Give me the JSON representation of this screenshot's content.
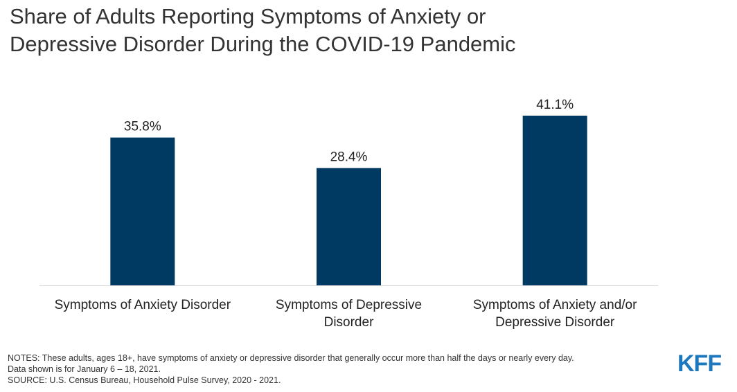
{
  "title": {
    "line1": "Share of Adults Reporting Symptoms of Anxiety or",
    "line2": "Depressive Disorder During the COVID-19 Pandemic"
  },
  "chart_data": {
    "type": "bar",
    "categories": [
      [
        "Symptoms of Anxiety Disorder"
      ],
      [
        "Symptoms of Depressive",
        "Disorder"
      ],
      [
        "Symptoms of Anxiety and/or",
        "Depressive Disorder"
      ]
    ],
    "values": [
      35.8,
      28.4,
      41.1
    ],
    "value_labels": [
      "35.8%",
      "28.4%",
      "41.1%"
    ],
    "bar_color": "#003a63",
    "grid": false,
    "legend": "none"
  },
  "notes": {
    "line1": "NOTES: These adults, ages 18+, have symptoms of anxiety or depressive disorder that generally occur more than half the days or nearly every day.",
    "line2": "Data shown is for January 6 – 18, 2021.",
    "source": "SOURCE: U.S. Census Bureau, Household Pulse Survey, 2020 - 2021."
  },
  "logo": {
    "text": "KFF",
    "color": "#1e78be"
  }
}
